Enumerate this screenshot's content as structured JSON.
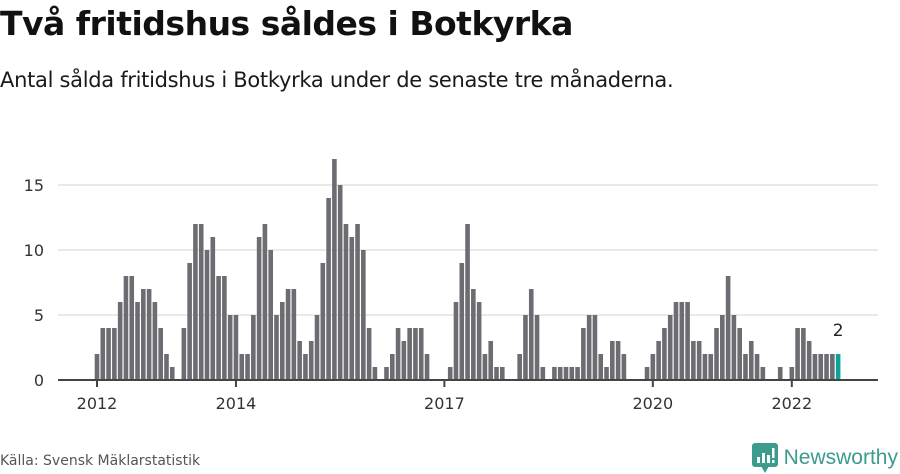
{
  "header": {
    "title": "Två fritidshus såldes i Botkyrka",
    "subtitle": "Antal sålda fritidshus i Botkyrka under de senaste tre månaderna."
  },
  "footer": {
    "source": "Källa: Svensk Mäklarstatistik",
    "brand": "Newsworthy",
    "brand_icon": "bar-chart-speech-bubble-icon"
  },
  "colors": {
    "bar": "#6d6c72",
    "highlight": "#0ea39a",
    "grid": "#e2e2e2",
    "axis": "#444444",
    "brand": "#3b9b8c"
  },
  "chart_data": {
    "type": "bar",
    "title": "Två fritidshus såldes i Botkyrka",
    "subtitle": "Antal sålda fritidshus i Botkyrka under de senaste tre månaderna.",
    "xlabel": "",
    "ylabel": "",
    "ylim": [
      0,
      17
    ],
    "yticks": [
      0,
      5,
      10,
      15
    ],
    "xticks": [
      {
        "label": "2012",
        "index": 0
      },
      {
        "label": "2014",
        "index": 24
      },
      {
        "label": "2017",
        "index": 60
      },
      {
        "label": "2020",
        "index": 96
      },
      {
        "label": "2022",
        "index": 120
      }
    ],
    "grid": true,
    "start": "2012-01",
    "frequency": "monthly",
    "highlight_index": 128,
    "annotation": {
      "text": "2",
      "index": 128
    },
    "values": [
      2,
      4,
      4,
      4,
      6,
      8,
      8,
      6,
      7,
      7,
      6,
      4,
      2,
      1,
      0,
      4,
      9,
      12,
      12,
      10,
      11,
      8,
      8,
      5,
      5,
      2,
      2,
      5,
      11,
      12,
      10,
      5,
      6,
      7,
      7,
      3,
      2,
      3,
      5,
      9,
      14,
      17,
      15,
      12,
      11,
      12,
      10,
      4,
      1,
      0,
      1,
      2,
      4,
      3,
      4,
      4,
      4,
      2,
      0,
      0,
      0,
      1,
      6,
      9,
      12,
      7,
      6,
      2,
      3,
      1,
      1,
      0,
      0,
      2,
      5,
      7,
      5,
      1,
      0,
      1,
      1,
      1,
      1,
      1,
      4,
      5,
      5,
      2,
      1,
      3,
      3,
      2,
      0,
      0,
      0,
      1,
      2,
      3,
      4,
      5,
      6,
      6,
      6,
      3,
      3,
      2,
      2,
      4,
      5,
      8,
      5,
      4,
      2,
      3,
      2,
      1,
      0,
      0,
      1,
      0,
      1,
      4,
      4,
      3,
      2,
      2,
      2,
      2,
      2
    ]
  }
}
